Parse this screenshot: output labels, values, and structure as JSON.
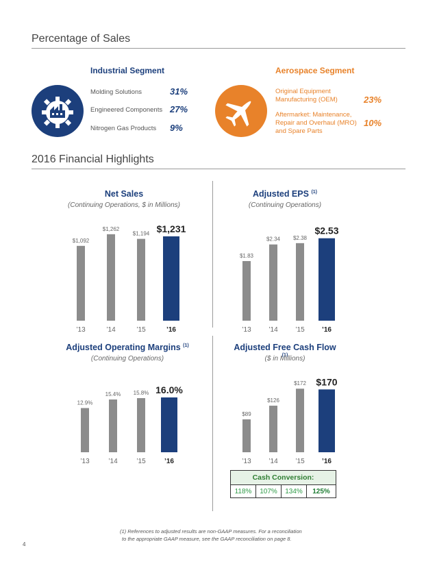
{
  "sections": {
    "pct_sales_title": "Percentage of Sales",
    "highlights_title": "2016 Financial Highlights"
  },
  "industrial": {
    "title": "Industrial Segment",
    "items": [
      {
        "label": "Molding Solutions",
        "pct": "31%"
      },
      {
        "label": "Engineered Components",
        "pct": "27%"
      },
      {
        "label": "Nitrogen Gas Products",
        "pct": "9%"
      }
    ],
    "icon": "factory-gear-icon",
    "color": "#1c3f7c"
  },
  "aerospace": {
    "title": "Aerospace Segment",
    "items": [
      {
        "label": "Original Equipment Manufacturing (OEM)",
        "pct": "23%"
      },
      {
        "label": "Aftermarket: Maintenance, Repair and Overhaul (MRO) and Spare Parts",
        "pct": "10%"
      }
    ],
    "icon": "airplane-icon",
    "color": "#e8822a"
  },
  "chart_data": [
    {
      "type": "bar",
      "title": "Net Sales",
      "title_sup": "",
      "subtitle": "(Continuing Operations, $ in Millions)",
      "categories": [
        "’13",
        "’14",
        "’15",
        "’16"
      ],
      "values": [
        1092,
        1262,
        1194,
        1231
      ],
      "labels": [
        "$1,092",
        "$1,262",
        "$1,194",
        "$1,231"
      ],
      "ylim": [
        0,
        1300
      ],
      "colors": [
        "#8c8c8c",
        "#8c8c8c",
        "#8c8c8c",
        "#1c3f7c"
      ]
    },
    {
      "type": "bar",
      "title": "Adjusted EPS",
      "title_sup": "(1)",
      "subtitle": "(Continuing Operations)",
      "categories": [
        "’13",
        "’14",
        "’15",
        "’16"
      ],
      "values": [
        1.83,
        2.34,
        2.38,
        2.53
      ],
      "labels": [
        "$1.83",
        "$2.34",
        "$2.38",
        "$2.53"
      ],
      "ylim": [
        0,
        2.65
      ],
      "colors": [
        "#8c8c8c",
        "#8c8c8c",
        "#8c8c8c",
        "#1c3f7c"
      ]
    },
    {
      "type": "bar",
      "title": "Adjusted Operating Margins",
      "title_sup": "(1)",
      "subtitle": "(Continuing Operations)",
      "categories": [
        "’13",
        "’14",
        "’15",
        "’16"
      ],
      "values": [
        12.9,
        15.4,
        15.8,
        16.0
      ],
      "labels": [
        "12.9%",
        "15.4%",
        "15.8%",
        "16.0%"
      ],
      "ylim": [
        0,
        18
      ],
      "colors": [
        "#8c8c8c",
        "#8c8c8c",
        "#8c8c8c",
        "#1c3f7c"
      ]
    },
    {
      "type": "bar",
      "title": "Adjusted Free Cash Flow",
      "title_sup": "(1)",
      "subtitle": "($ in Millions)",
      "categories": [
        "’13",
        "’14",
        "’15",
        "’16"
      ],
      "values": [
        89,
        126,
        172,
        170
      ],
      "labels": [
        "$89",
        "$126",
        "$172",
        "$170"
      ],
      "ylim": [
        0,
        178
      ],
      "colors": [
        "#8c8c8c",
        "#8c8c8c",
        "#8c8c8c",
        "#1c3f7c"
      ]
    }
  ],
  "cash_conversion": {
    "title": "Cash Conversion:",
    "values": [
      "118%",
      "107%",
      "134%",
      "125%"
    ]
  },
  "footnote": {
    "line1": "(1) References to adjusted results are non-GAAP measures. For a reconciliation",
    "line2": "to the appropriate GAAP measure, see the GAAP reconciliation on page 8."
  },
  "page_number": "4"
}
